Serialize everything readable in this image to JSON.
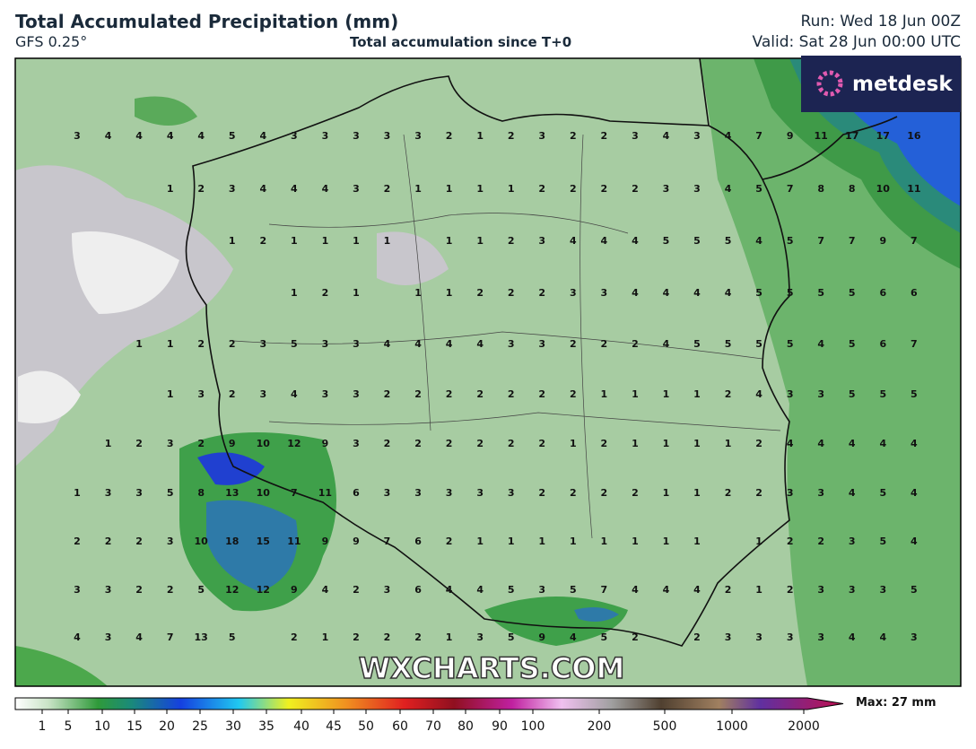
{
  "header": {
    "title": "Total Accumulated Precipitation (mm)",
    "model": "GFS 0.25°",
    "subtitle": "Total accumulation since T+0",
    "run": "Run: Wed 18 Jun 00Z",
    "valid": "Valid: Sat 28 Jun 00:00 UTC"
  },
  "logo": "metdesk",
  "watermark": "WXCHARTS.COM",
  "grid": {
    "rows": [
      [
        3,
        4,
        4,
        4,
        4,
        5,
        4,
        3,
        3,
        3,
        3,
        3,
        2,
        1,
        2,
        3,
        2,
        2,
        3,
        4,
        3,
        4,
        7,
        9,
        11,
        17,
        17,
        16
      ],
      [
        null,
        null,
        null,
        1,
        2,
        3,
        4,
        4,
        4,
        3,
        2,
        1,
        1,
        1,
        1,
        2,
        2,
        2,
        2,
        3,
        3,
        4,
        5,
        7,
        8,
        8,
        10,
        11
      ],
      [
        null,
        null,
        null,
        null,
        null,
        1,
        2,
        1,
        1,
        1,
        1,
        null,
        1,
        1,
        2,
        3,
        4,
        4,
        4,
        5,
        5,
        5,
        4,
        5,
        7,
        7,
        9,
        7
      ],
      [
        null,
        null,
        null,
        null,
        null,
        null,
        null,
        1,
        2,
        1,
        null,
        1,
        1,
        2,
        2,
        2,
        3,
        3,
        4,
        4,
        4,
        4,
        5,
        5,
        5,
        5,
        6,
        6
      ],
      [
        null,
        null,
        1,
        1,
        2,
        2,
        3,
        5,
        3,
        3,
        4,
        4,
        4,
        4,
        3,
        3,
        2,
        2,
        2,
        4,
        5,
        5,
        5,
        5,
        4,
        5,
        6,
        7
      ],
      [
        null,
        null,
        null,
        1,
        3,
        2,
        3,
        4,
        3,
        3,
        2,
        2,
        2,
        2,
        2,
        2,
        2,
        1,
        1,
        1,
        1,
        2,
        4,
        3,
        3,
        5,
        5,
        5
      ],
      [
        null,
        1,
        2,
        3,
        2,
        9,
        10,
        12,
        9,
        3,
        2,
        2,
        2,
        2,
        2,
        2,
        1,
        2,
        1,
        1,
        1,
        1,
        2,
        4,
        4,
        4,
        4,
        4
      ],
      [
        1,
        3,
        3,
        5,
        8,
        13,
        10,
        7,
        11,
        6,
        3,
        3,
        3,
        3,
        3,
        2,
        2,
        2,
        2,
        1,
        1,
        2,
        2,
        3,
        3,
        4,
        5,
        4
      ],
      [
        2,
        2,
        2,
        3,
        10,
        18,
        15,
        11,
        9,
        9,
        7,
        6,
        2,
        1,
        1,
        1,
        1,
        1,
        1,
        1,
        1,
        null,
        1,
        2,
        2,
        3,
        5,
        4
      ],
      [
        3,
        3,
        2,
        2,
        5,
        12,
        12,
        9,
        4,
        2,
        3,
        6,
        4,
        4,
        5,
        3,
        5,
        7,
        4,
        4,
        4,
        2,
        1,
        2,
        3,
        3,
        3,
        5
      ],
      [
        4,
        3,
        4,
        7,
        13,
        5,
        null,
        2,
        1,
        2,
        2,
        2,
        1,
        3,
        5,
        9,
        4,
        5,
        2,
        null,
        2,
        3,
        3,
        3,
        3,
        4,
        4,
        3
      ]
    ]
  },
  "colorbar": {
    "labels": [
      "1",
      "5",
      "10",
      "15",
      "20",
      "25",
      "30",
      "35",
      "40",
      "45",
      "50",
      "60",
      "70",
      "80",
      "90",
      "100",
      "200",
      "500",
      "1000",
      "2000"
    ],
    "max": "Max: 27 mm"
  }
}
